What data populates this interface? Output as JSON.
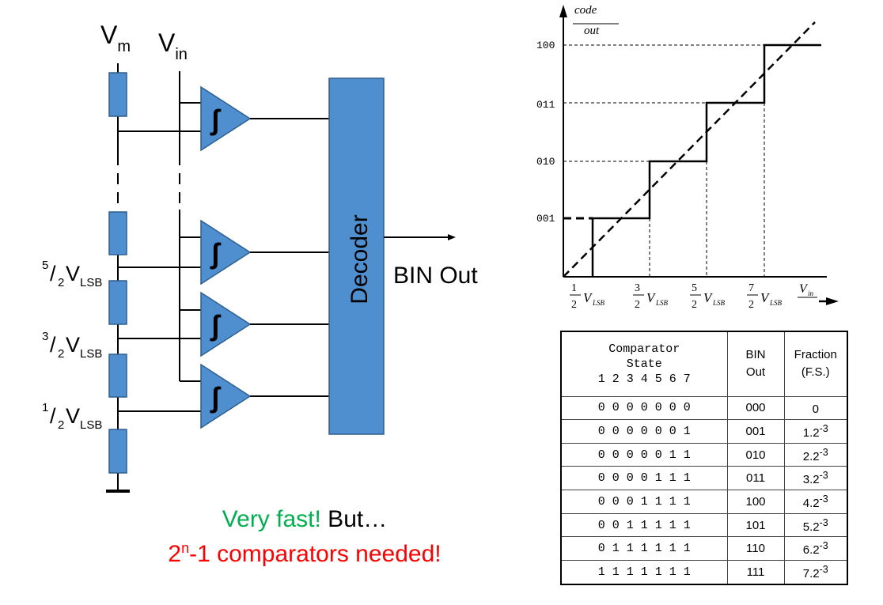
{
  "circuit": {
    "vm_main": "V",
    "vm_sub": "m",
    "vin_main": "V",
    "vin_sub": "in",
    "decoder_label": "Decoder",
    "bin_out_label": "BIN Out",
    "ref_labels": [
      {
        "num": "5",
        "den": "2",
        "v": "V",
        "sub": "LSB"
      },
      {
        "num": "3",
        "den": "2",
        "v": "V",
        "sub": "LSB"
      },
      {
        "num": "1",
        "den": "2",
        "v": "V",
        "sub": "LSB"
      }
    ],
    "comparator_glyph": "ʃ"
  },
  "caption": {
    "fast": "Very fast!",
    "but": " But…",
    "base": "2",
    "exp": "n",
    "rest": "-1 comparators needed!"
  },
  "graph": {
    "y_axis_label_1": "code",
    "y_axis_label_2": "out",
    "x_axis_label_main": "V",
    "x_axis_label_sub": "in",
    "y_ticks": [
      "100",
      "011",
      "010",
      "001"
    ],
    "x_ticks": [
      {
        "num": "1",
        "den": "2",
        "v": "V",
        "sub": "LSB"
      },
      {
        "num": "3",
        "den": "2",
        "v": "V",
        "sub": "LSB"
      },
      {
        "num": "5",
        "den": "2",
        "v": "V",
        "sub": "LSB"
      },
      {
        "num": "7",
        "den": "2",
        "v": "V",
        "sub": "LSB"
      }
    ]
  },
  "table": {
    "header_state_1": "Comparator",
    "header_state_2": "State",
    "header_state_3": "1 2 3 4 5 6 7",
    "header_bin_1": "BIN",
    "header_bin_2": "Out",
    "header_frac_1": "Fraction",
    "header_frac_2": "(F.S.)",
    "rows": [
      {
        "state": "0 0 0 0 0 0 0",
        "bin": "000",
        "frac": "0",
        "exp": ""
      },
      {
        "state": "0 0 0 0 0 0 1",
        "bin": "001",
        "frac": "1.2",
        "exp": "-3"
      },
      {
        "state": "0 0 0 0 0 1 1",
        "bin": "010",
        "frac": "2.2",
        "exp": "-3"
      },
      {
        "state": "0 0 0 0 1 1 1",
        "bin": "011",
        "frac": "3.2",
        "exp": "-3"
      },
      {
        "state": "0 0 0 1 1 1 1",
        "bin": "100",
        "frac": "4.2",
        "exp": "-3"
      },
      {
        "state": "0 0 1 1 1 1 1",
        "bin": "101",
        "frac": "5.2",
        "exp": "-3"
      },
      {
        "state": "0 1 1 1 1 1 1",
        "bin": "110",
        "frac": "6.2",
        "exp": "-3"
      },
      {
        "state": "1 1 1 1 1 1 1",
        "bin": "111",
        "frac": "7.2",
        "exp": "-3"
      }
    ]
  },
  "colors": {
    "block_fill": "#4f8fcf",
    "block_stroke": "#2e5f8f",
    "caption_green": "#00b050",
    "caption_red": "#ff0000"
  }
}
